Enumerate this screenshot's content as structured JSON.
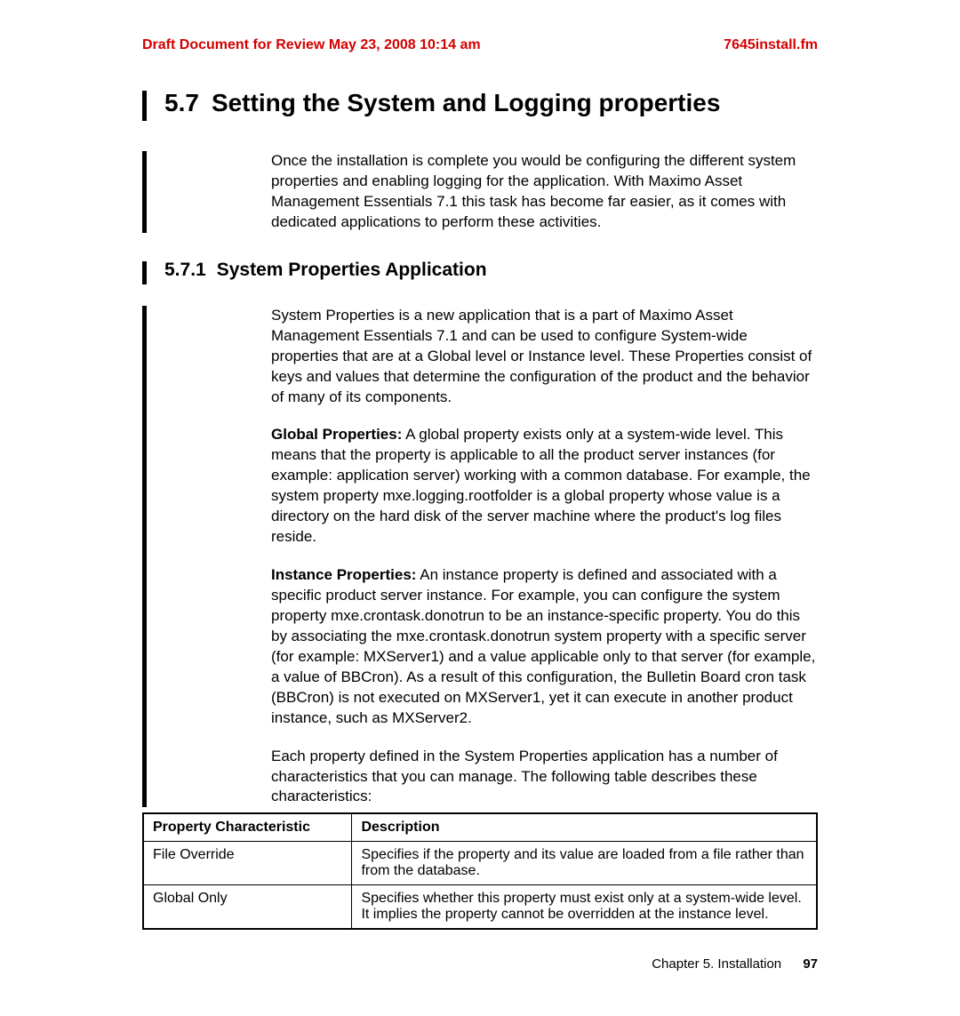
{
  "header": {
    "draft": "Draft Document for Review May 23, 2008 10:14 am",
    "filename": "7645install.fm"
  },
  "section": {
    "number": "5.7",
    "title": "Setting the System and Logging properties",
    "intro": "Once the installation is complete you would be configuring the different system properties and enabling logging for the application. With Maximo Asset Management Essentials 7.1 this task has become far easier, as it comes with dedicated applications to perform these activities."
  },
  "subsection": {
    "number": "5.7.1",
    "title": "System Properties Application",
    "p1": "System Properties is a new application that is a part of Maximo Asset Management Essentials 7.1 and can be used to configure System-wide properties that are at a Global level or Instance level. These Properties consist of keys and values that determine the configuration of the product and the behavior of many of its components.",
    "p2_label": "Global Properties:",
    "p2": " A global property exists only at a system-wide level. This means that the property is applicable to all the product server instances (for example: application server) working with a common database. For example, the system property mxe.logging.rootfolder is a global property whose value is a directory on the hard disk of the server machine where the product's log files reside.",
    "p3_label": "Instance Properties:",
    "p3": " An instance property is defined and associated with a specific product server instance. For example, you can configure the system property mxe.crontask.donotrun to be an instance-specific property. You do this by associating the mxe.crontask.donotrun system property with a specific server (for example: MXServer1) and a value applicable only to that server (for example, a value of BBCron). As a result of this configuration, the Bulletin Board cron task (BBCron) is not executed on MXServer1, yet it can execute in another product instance, such as MXServer2.",
    "p4": "Each property defined in the System Properties application has a number of characteristics that you can manage. The following table describes these characteristics:"
  },
  "table": {
    "columns": [
      "Property Characteristic",
      "Description"
    ],
    "rows": [
      [
        "File Override",
        "Specifies if the property and its value are loaded from a file rather than from the database."
      ],
      [
        "Global Only",
        "Specifies whether this property must exist only at a system-wide level. It implies the property cannot be overridden at the instance level."
      ]
    ]
  },
  "footer": {
    "chapter": "Chapter 5. Installation",
    "page": "97"
  },
  "colors": {
    "accent": "#d40000",
    "text": "#000000",
    "bg": "#ffffff"
  }
}
